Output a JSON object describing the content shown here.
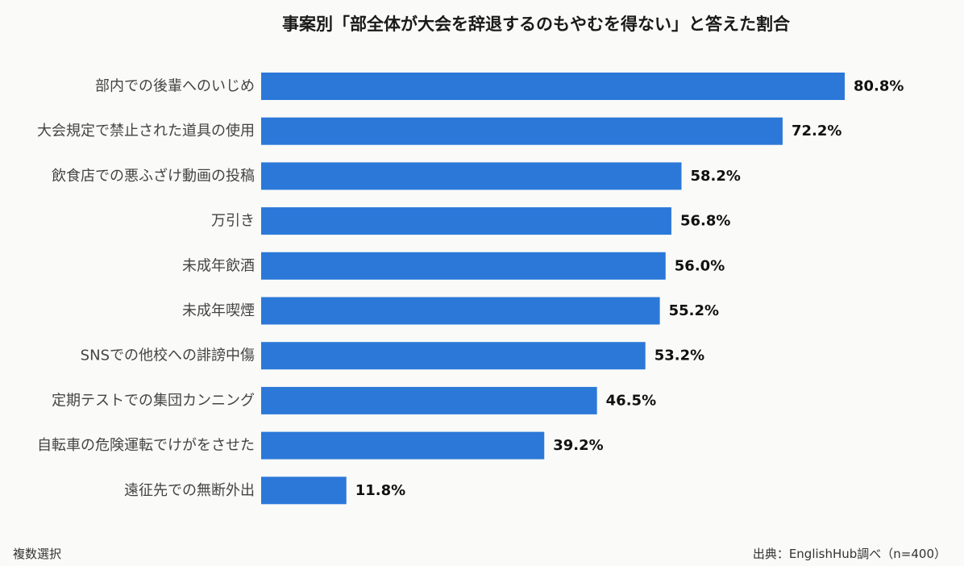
{
  "chart_data": {
    "type": "bar",
    "orientation": "horizontal",
    "title": "事案別「部全体が大会を辞退するのもやむを得ない」と答えた割合",
    "categories": [
      "部内での後輩へのいじめ",
      "大会規定で禁止された道具の使用",
      "飲食店での悪ふざけ動画の投稿",
      "万引き",
      "未成年飲酒",
      "未成年喫煙",
      "SNSでの他校への誹謗中傷",
      "定期テストでの集団カンニング",
      "自転車の危険運転でけがをさせた",
      "遠征先での無断外出"
    ],
    "values": [
      80.8,
      72.2,
      58.2,
      56.8,
      56.0,
      55.2,
      53.2,
      46.5,
      39.2,
      11.8
    ],
    "value_labels": [
      "80.8%",
      "72.2%",
      "58.2%",
      "56.8%",
      "56.0%",
      "55.2%",
      "53.2%",
      "46.5%",
      "39.2%",
      "11.8%"
    ],
    "unit": "%",
    "xlim": [
      0,
      100
    ],
    "grid": false,
    "legend": "none",
    "bar_color": "#2b78d8"
  },
  "footnote_left": "複数選択",
  "footnote_right": "出典：EnglishHub調べ（n=400）"
}
